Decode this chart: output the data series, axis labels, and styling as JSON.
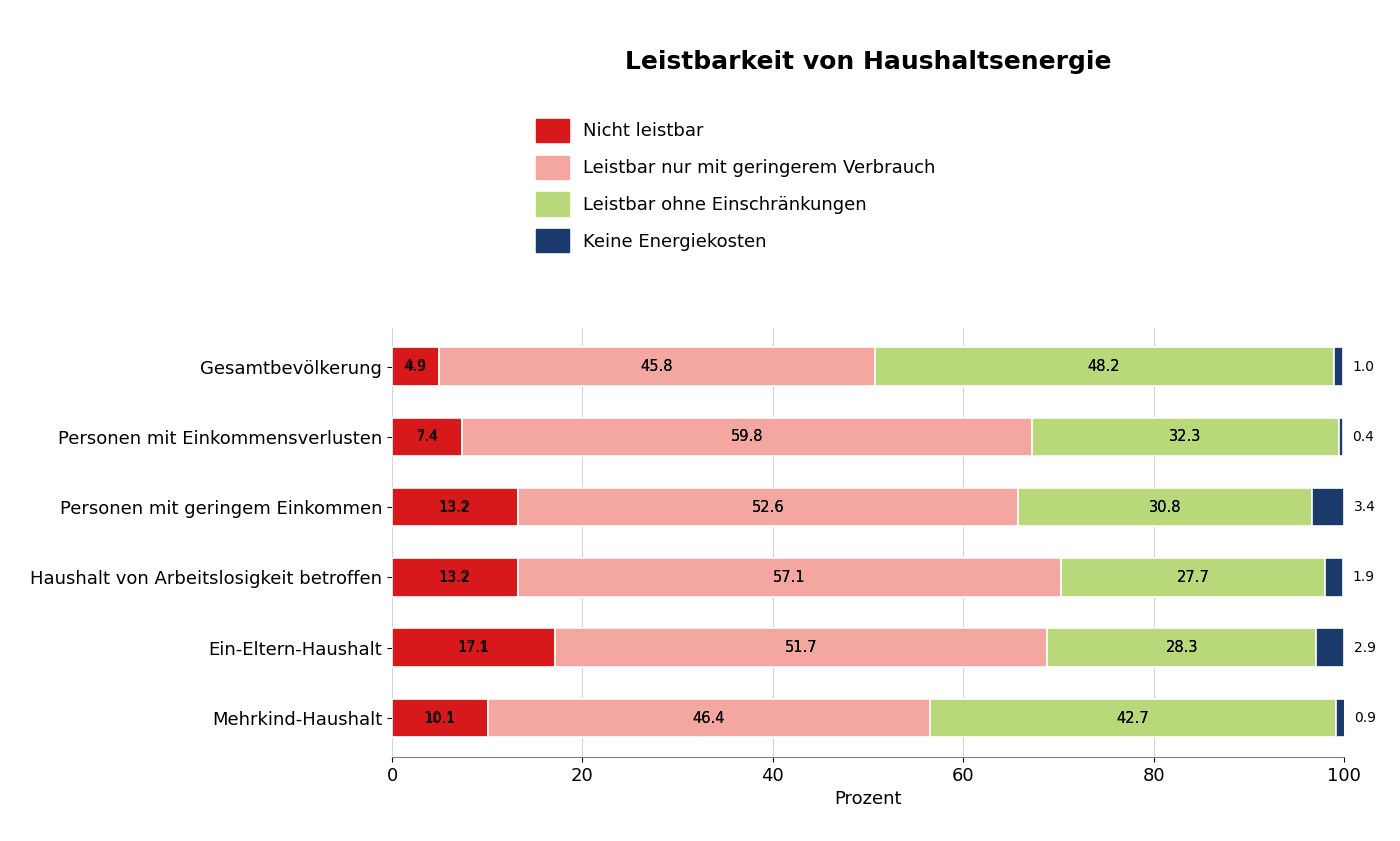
{
  "title": "Leistbarkeit von Haushaltsenergie",
  "categories": [
    "Gesamtbevölkerung",
    "Personen mit Einkommensverlusten",
    "Personen mit geringem Einkommen",
    "Haushalt von Arbeitslosigkeit betroffen",
    "Ein-Eltern-Haushalt",
    "Mehrkind-Haushalt"
  ],
  "series": {
    "nicht_leistbar": [
      4.9,
      7.4,
      13.2,
      13.2,
      17.1,
      10.1
    ],
    "leistbar_geringe": [
      45.8,
      59.8,
      52.6,
      57.1,
      51.7,
      46.4
    ],
    "leistbar_ohne": [
      48.2,
      32.3,
      30.8,
      27.7,
      28.3,
      42.7
    ],
    "keine_energiekosten": [
      1.0,
      0.4,
      3.4,
      1.9,
      2.9,
      0.9
    ]
  },
  "colors": {
    "nicht_leistbar": "#d7191c",
    "leistbar_geringe": "#f4a6a0",
    "leistbar_ohne": "#b8d87a",
    "keine_energiekosten": "#1a3a6b"
  },
  "legend_labels": [
    "Nicht leistbar",
    "Leistbar nur mit geringerem Verbrauch",
    "Leistbar ohne Einschränkungen",
    "Keine Energiekosten"
  ],
  "xlabel": "Prozent",
  "xlim": [
    0,
    100
  ],
  "xticks": [
    0,
    20,
    40,
    60,
    80,
    100
  ],
  "background_color": "#ffffff",
  "title_fontsize": 18,
  "label_fontsize": 13,
  "tick_fontsize": 13,
  "bar_height": 0.55
}
